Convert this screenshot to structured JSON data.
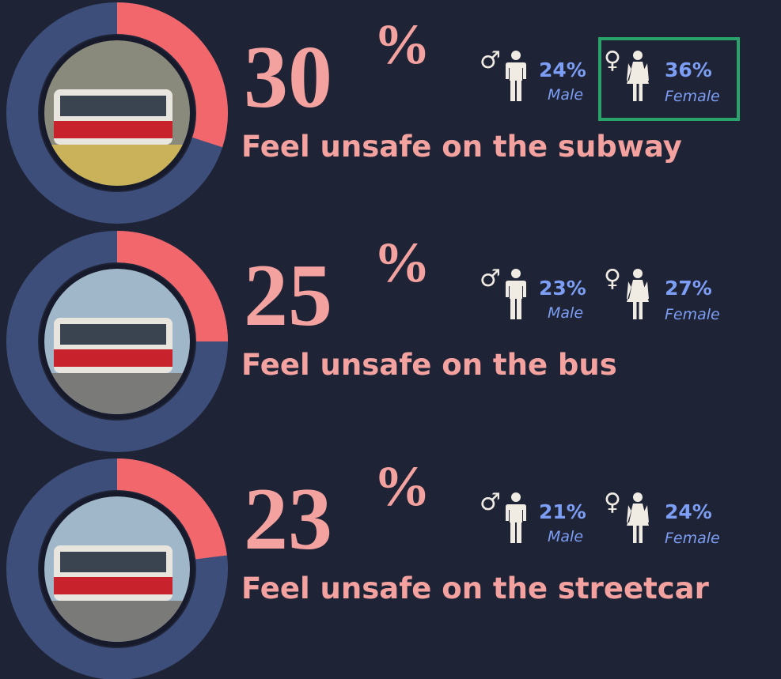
{
  "items": [
    {
      "value": 30,
      "symbol": "%",
      "caption": "Feel unsafe on the subway",
      "male": 24,
      "male_text": "Male",
      "female": 36,
      "female_text": "Female"
    },
    {
      "value": 25,
      "symbol": "%",
      "caption": "Feel unsafe on the bus",
      "male": 23,
      "male_text": "Male",
      "female": 27,
      "female_text": "Female"
    },
    {
      "value": 23,
      "symbol": "%",
      "caption": "Feel unsafe on the streetcar",
      "male": 21,
      "male_text": "Male",
      "female": 24,
      "female_text": "Female"
    }
  ]
}
